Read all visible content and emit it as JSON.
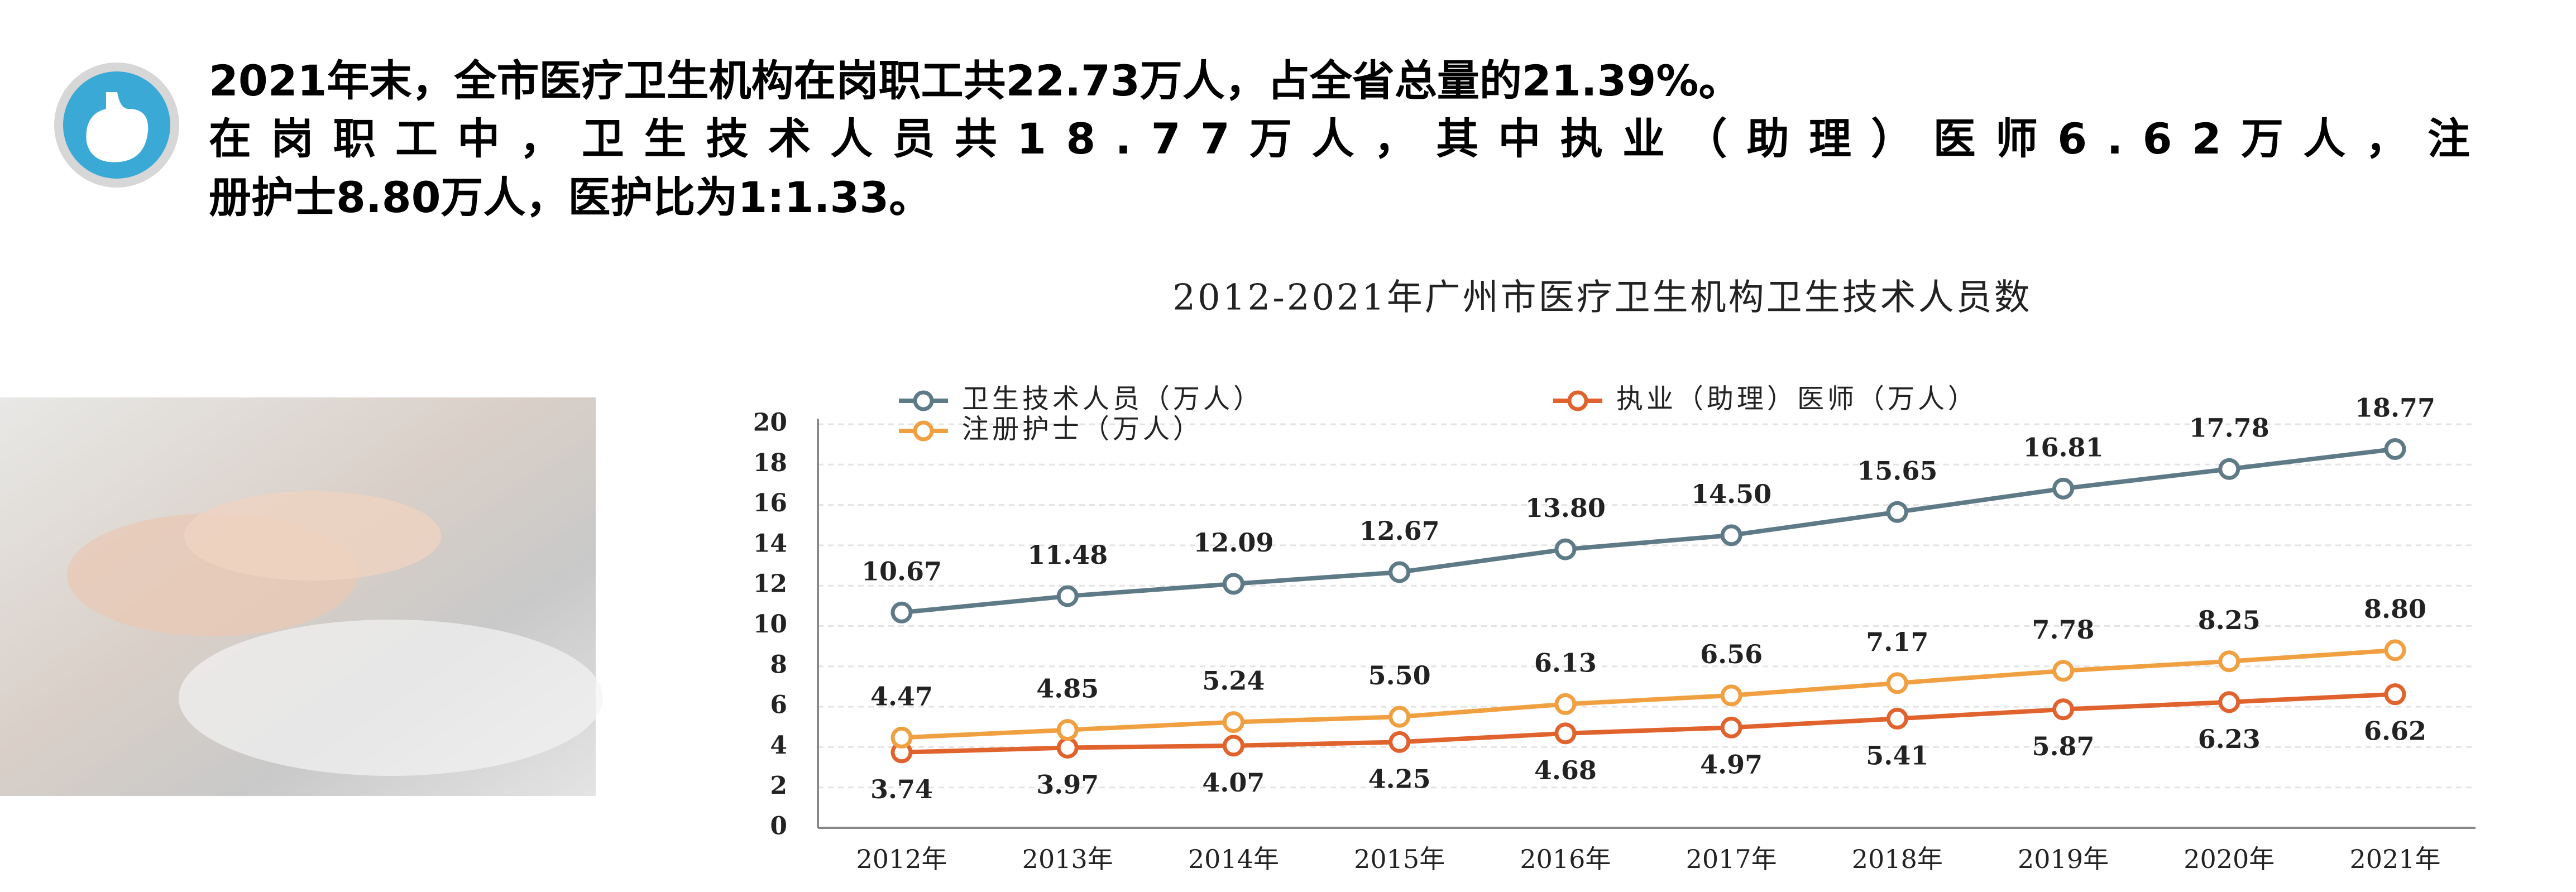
{
  "text": {
    "lines": [
      "2021年末，全市医疗卫生机构在岗职工共22.73万人，占全省总量的21.39%。",
      "在岗职工中，卫生技术人员共18.77万人，其中执业（助理）医师6.62万人，注",
      "册护士8.80万人，医护比为1:1.33。"
    ]
  },
  "chart_data": {
    "type": "line",
    "title": "2012-2021年广州市医疗卫生机构卫生技术人员数",
    "categories": [
      "2012年",
      "2013年",
      "2014年",
      "2015年",
      "2016年",
      "2017年",
      "2018年",
      "2019年",
      "2020年",
      "2021年"
    ],
    "series": [
      {
        "name": "卫生技术人员（万人）",
        "color": "#5f7a87",
        "values": [
          10.67,
          11.48,
          12.09,
          12.67,
          13.8,
          14.5,
          15.65,
          16.81,
          17.78,
          18.77
        ],
        "value_labels": [
          "10.67",
          "11.48",
          "12.09",
          "12.67",
          "13.80",
          "14.50",
          "15.65",
          "16.81",
          "17.78",
          "18.77"
        ]
      },
      {
        "name": "执业（助理）医师（万人）",
        "color": "#e0622c",
        "values": [
          3.74,
          3.97,
          4.07,
          4.25,
          4.68,
          4.97,
          5.41,
          5.87,
          6.23,
          6.62
        ],
        "value_labels": [
          "3.74",
          "3.97",
          "4.07",
          "4.25",
          "4.68",
          "4.97",
          "5.41",
          "5.87",
          "6.23",
          "6.62"
        ]
      },
      {
        "name": "注册护士（万人）",
        "color": "#f0a040",
        "values": [
          4.47,
          4.85,
          5.24,
          5.5,
          6.13,
          6.56,
          7.17,
          7.78,
          8.25,
          8.8
        ],
        "value_labels": [
          "4.47",
          "4.85",
          "5.24",
          "5.50",
          "6.13",
          "6.56",
          "7.17",
          "7.78",
          "8.25",
          "8.80"
        ]
      }
    ],
    "ylim": [
      0,
      20
    ],
    "yticks": [
      0,
      2,
      4,
      6,
      8,
      10,
      12,
      14,
      16,
      18,
      20
    ],
    "grid": true
  }
}
